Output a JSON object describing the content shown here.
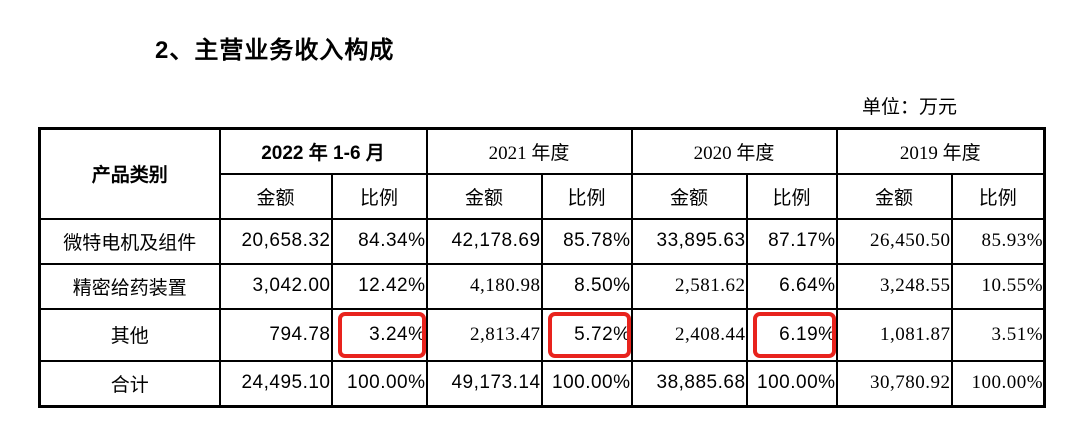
{
  "page": {
    "title": "2、主营业务收入构成",
    "unit_label": "单位：万元"
  },
  "table": {
    "product_header": "产品类别",
    "period_headers": [
      {
        "label": "2022 年 1-6 月",
        "bold": true
      },
      {
        "label": "2021 年度",
        "bold": false
      },
      {
        "label": "2020 年度",
        "bold": false
      },
      {
        "label": "2019 年度",
        "bold": false
      }
    ],
    "sub_headers": {
      "amount": "金额",
      "ratio": "比例"
    },
    "rows": [
      {
        "label": "微特电机及组件",
        "cells": [
          {
            "value": "20,658.32",
            "bold": true
          },
          {
            "value": "84.34%",
            "bold": true
          },
          {
            "value": "42,178.69",
            "bold": true
          },
          {
            "value": "85.78%",
            "bold": true
          },
          {
            "value": "33,895.63",
            "bold": true
          },
          {
            "value": "87.17%",
            "bold": true
          },
          {
            "value": "26,450.50",
            "bold": false
          },
          {
            "value": "85.93%",
            "bold": false
          }
        ]
      },
      {
        "label": "精密给药装置",
        "cells": [
          {
            "value": "3,042.00",
            "bold": true
          },
          {
            "value": "12.42%",
            "bold": true
          },
          {
            "value": "4,180.98",
            "bold": false
          },
          {
            "value": "8.50%",
            "bold": true
          },
          {
            "value": "2,581.62",
            "bold": false
          },
          {
            "value": "6.64%",
            "bold": true
          },
          {
            "value": "3,248.55",
            "bold": false
          },
          {
            "value": "10.55%",
            "bold": false
          }
        ]
      },
      {
        "label": "其他",
        "cells": [
          {
            "value": "794.78",
            "bold": true
          },
          {
            "value": "3.24%",
            "bold": true,
            "boxed": true
          },
          {
            "value": "2,813.47",
            "bold": false
          },
          {
            "value": "5.72%",
            "bold": true,
            "boxed": true
          },
          {
            "value": "2,408.44",
            "bold": false
          },
          {
            "value": "6.19%",
            "bold": true,
            "boxed": true
          },
          {
            "value": "1,081.87",
            "bold": false
          },
          {
            "value": "3.51%",
            "bold": false
          }
        ]
      },
      {
        "label": "合计",
        "cells": [
          {
            "value": "24,495.10",
            "bold": true
          },
          {
            "value": "100.00%",
            "bold": true
          },
          {
            "value": "49,173.14",
            "bold": true
          },
          {
            "value": "100.00%",
            "bold": true
          },
          {
            "value": "38,885.68",
            "bold": true
          },
          {
            "value": "100.00%",
            "bold": true
          },
          {
            "value": "30,780.92",
            "bold": false
          },
          {
            "value": "100.00%",
            "bold": false
          }
        ]
      }
    ]
  },
  "colors": {
    "highlight_box": "#e8231d",
    "text": "#000000",
    "border": "#000000",
    "background": "#ffffff"
  }
}
